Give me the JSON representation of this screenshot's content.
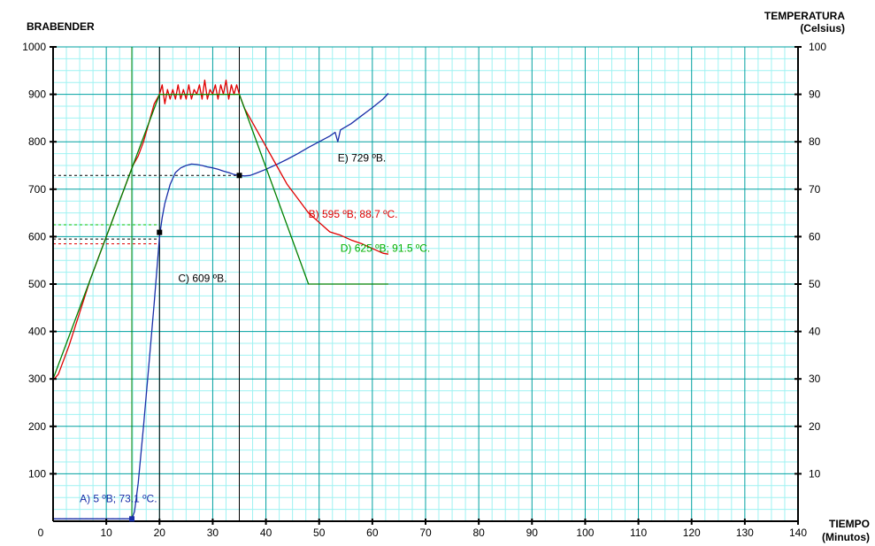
{
  "chart_data": {
    "type": "line",
    "left_axis_title": "BRABENDER",
    "right_axis_title": "TEMPERATURA",
    "right_axis_unit": "(Celsius)",
    "x_axis_title": "TIEMPO",
    "x_axis_unit": "(Minutos)",
    "xlim": [
      0,
      140
    ],
    "ylim_left": [
      0,
      1000
    ],
    "ylim_right": [
      0,
      100
    ],
    "x_ticks": [
      "10",
      "20",
      "30",
      "40",
      "50",
      "60",
      "70",
      "80",
      "90",
      "100",
      "110",
      "120",
      "130",
      "140"
    ],
    "x_origin_label": "0",
    "y_left_ticks": [
      "100",
      "200",
      "300",
      "400",
      "500",
      "600",
      "700",
      "800",
      "900",
      "1000"
    ],
    "y_right_ticks": [
      "10",
      "20",
      "30",
      "40",
      "50",
      "60",
      "70",
      "80",
      "90",
      "100"
    ],
    "grid": true,
    "colors": {
      "brabender": "#1a2fa8",
      "temperature": "#e00000",
      "temperature_program": "#008000",
      "grid_major": "#00a0a0",
      "grid_minor": "#9ff2f2",
      "marker_line": "#000000"
    },
    "series": [
      {
        "key": "brabender",
        "axis": "left",
        "points": [
          [
            0,
            5
          ],
          [
            14.8,
            5
          ],
          [
            15.3,
            20
          ],
          [
            16,
            80
          ],
          [
            17,
            200
          ],
          [
            18,
            330
          ],
          [
            19,
            460
          ],
          [
            20,
            600
          ],
          [
            20.5,
            640
          ],
          [
            21,
            670
          ],
          [
            22,
            710
          ],
          [
            23,
            735
          ],
          [
            24,
            745
          ],
          [
            25,
            750
          ],
          [
            26,
            753
          ],
          [
            27,
            752
          ],
          [
            28,
            750
          ],
          [
            29,
            747
          ],
          [
            30,
            745
          ],
          [
            31,
            742
          ],
          [
            32,
            738
          ],
          [
            33,
            735
          ],
          [
            34,
            731
          ],
          [
            35,
            729
          ],
          [
            36,
            728
          ],
          [
            37,
            729
          ],
          [
            38,
            733
          ],
          [
            40,
            742
          ],
          [
            42,
            752
          ],
          [
            44,
            763
          ],
          [
            46,
            775
          ],
          [
            48,
            788
          ],
          [
            50,
            800
          ],
          [
            52,
            812
          ],
          [
            53,
            820
          ],
          [
            53.5,
            800
          ],
          [
            54,
            825
          ],
          [
            56,
            838
          ],
          [
            58,
            855
          ],
          [
            60,
            872
          ],
          [
            62,
            890
          ],
          [
            63,
            902
          ]
        ]
      },
      {
        "key": "temperature",
        "axis": "right",
        "points": [
          [
            0,
            0
          ],
          [
            0.05,
            29.8
          ],
          [
            1,
            31
          ],
          [
            3,
            37
          ],
          [
            5,
            44
          ],
          [
            7,
            51
          ],
          [
            9,
            57
          ],
          [
            11,
            63
          ],
          [
            13,
            69
          ],
          [
            15,
            75
          ],
          [
            16,
            77
          ],
          [
            17,
            80
          ],
          [
            18,
            84
          ],
          [
            19,
            88
          ],
          [
            20,
            90
          ],
          [
            20.5,
            92
          ],
          [
            21,
            88
          ],
          [
            21.5,
            91
          ],
          [
            22,
            89
          ],
          [
            22.5,
            91
          ],
          [
            23,
            89
          ],
          [
            23.5,
            92
          ],
          [
            24,
            89
          ],
          [
            24.5,
            91
          ],
          [
            25,
            89
          ],
          [
            25.5,
            92
          ],
          [
            26,
            89
          ],
          [
            26.5,
            91
          ],
          [
            27,
            90
          ],
          [
            27.5,
            92
          ],
          [
            28,
            89
          ],
          [
            28.5,
            93
          ],
          [
            29,
            89
          ],
          [
            29.5,
            91
          ],
          [
            30,
            90
          ],
          [
            30.5,
            92
          ],
          [
            31,
            89
          ],
          [
            31.5,
            92
          ],
          [
            32,
            90
          ],
          [
            32.5,
            93
          ],
          [
            33,
            89
          ],
          [
            33.5,
            92
          ],
          [
            34,
            90
          ],
          [
            34.5,
            92
          ],
          [
            35,
            90
          ],
          [
            36,
            87
          ],
          [
            38,
            83
          ],
          [
            40,
            79
          ],
          [
            42,
            75
          ],
          [
            44,
            71
          ],
          [
            46,
            68
          ],
          [
            48,
            65
          ],
          [
            50,
            63
          ],
          [
            52,
            61
          ],
          [
            54,
            60.3
          ],
          [
            56,
            59.3
          ],
          [
            58,
            58.5
          ],
          [
            60,
            57.5
          ],
          [
            62,
            56.5
          ],
          [
            63,
            56.3
          ]
        ]
      },
      {
        "key": "temperature_program",
        "axis": "right",
        "points": [
          [
            0,
            30
          ],
          [
            20,
            90
          ],
          [
            35,
            90
          ],
          [
            48,
            50
          ],
          [
            63,
            50
          ]
        ]
      }
    ],
    "markers": [
      {
        "x": 14.8,
        "y_left": 5
      },
      {
        "x": 20,
        "y_left": 609
      },
      {
        "x": 35,
        "y_left": 729
      }
    ],
    "vertical_lines": [
      {
        "x": 14.8,
        "color": "#008000"
      },
      {
        "x": 20,
        "color": "#000000"
      },
      {
        "x": 35,
        "color": "#000000"
      }
    ],
    "guide_lines": [
      {
        "y_left": 5,
        "x_to": 14.8,
        "color": "#1a2fa8"
      },
      {
        "y_left": 595,
        "x_to": 20,
        "color": "#000000"
      },
      {
        "y_left": 585,
        "x_to": 20,
        "color": "#e00000"
      },
      {
        "y_left": 625,
        "x_to": 20,
        "color": "#00c000"
      },
      {
        "y_left": 729,
        "x_to": 35,
        "color": "#000000"
      }
    ],
    "annotations": [
      {
        "key": "A",
        "text": "A)  5 ºB;  73.1 ºC.",
        "x": 5,
        "y_left": 40,
        "color": "#1a2fa8"
      },
      {
        "key": "B",
        "text": "B)  595 ºB;  88.7 ºC.",
        "x": 48,
        "y_left": 640,
        "color": "#e00000"
      },
      {
        "key": "C",
        "text": "C)  609 ºB.",
        "x": 23.5,
        "y_left": 505,
        "color": "#000000"
      },
      {
        "key": "D",
        "text": "D)  625 ºB;  91.5 ºC.",
        "x": 54,
        "y_left": 568,
        "color": "#00b000"
      },
      {
        "key": "E",
        "text": "E)  729 ºB.",
        "x": 53.5,
        "y_left": 758,
        "color": "#000000"
      }
    ]
  }
}
